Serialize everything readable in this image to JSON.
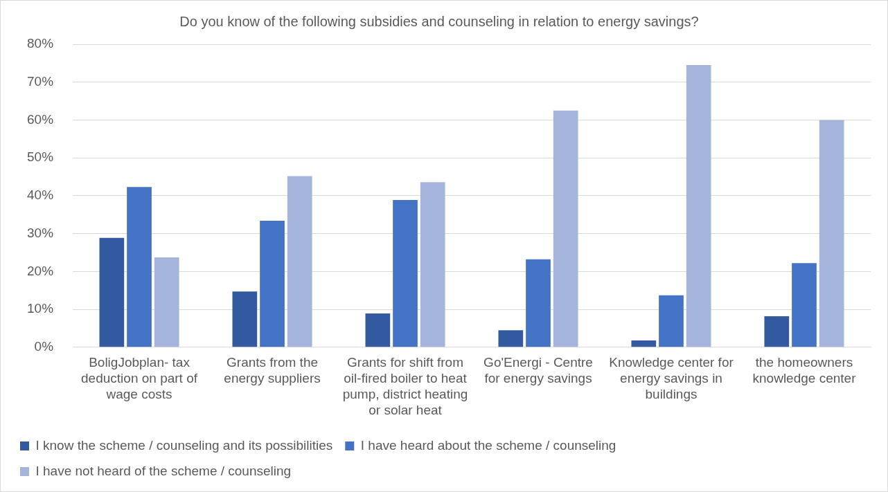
{
  "chart_data": {
    "type": "bar",
    "title": "Do you know of the following subsidies and counseling in relation to energy savings?",
    "categories": [
      "BoligJobplan- tax deduction on part of wage costs",
      "Grants from the energy suppliers",
      "Grants for shift from oil-fired boiler to heat pump, district heating or solar heat",
      "Go'Energi - Centre for energy savings",
      "Knowledge center for energy savings in buildings",
      "the homeowners knowledge center"
    ],
    "series": [
      {
        "name": "I know the scheme / counseling and its possibilities",
        "color": "#335aa1",
        "values": [
          28.9,
          14.7,
          8.9,
          4.5,
          1.8,
          8.2
        ]
      },
      {
        "name": "I have heard about the scheme / counseling",
        "color": "#4472c4",
        "values": [
          42.3,
          33.4,
          38.9,
          23.2,
          13.7,
          22.2
        ]
      },
      {
        "name": "I have not heard of the scheme / counseling",
        "color": "#a5b4da",
        "values": [
          23.7,
          45.2,
          43.6,
          62.5,
          74.5,
          60.0
        ]
      }
    ],
    "ylim": [
      0,
      80
    ],
    "yticks": [
      {
        "value": 0,
        "label": "0%"
      },
      {
        "value": 10,
        "label": "10%"
      },
      {
        "value": 20,
        "label": "20%"
      },
      {
        "value": 30,
        "label": "30%"
      },
      {
        "value": 40,
        "label": "40%"
      },
      {
        "value": 50,
        "label": "50%"
      },
      {
        "value": 60,
        "label": "60%"
      },
      {
        "value": 70,
        "label": "70%"
      },
      {
        "value": 80,
        "label": "80%"
      }
    ],
    "grid": "y",
    "legend": "bottom"
  }
}
